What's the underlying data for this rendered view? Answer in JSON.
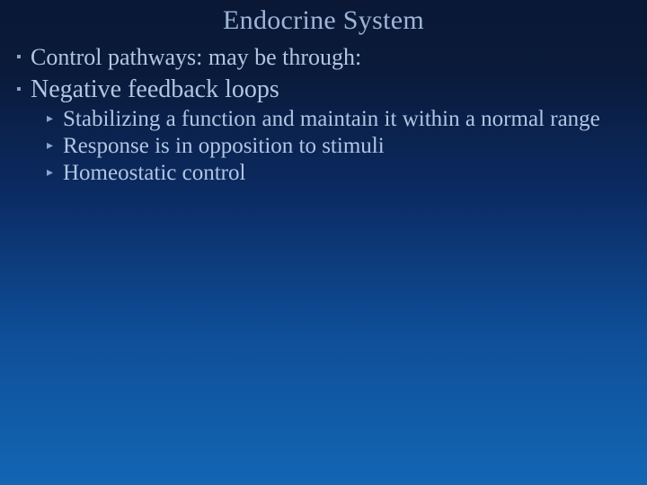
{
  "colors": {
    "title_color": "#9db6d8",
    "body_color": "#b1c6e2",
    "bullet_color": "#8aa6cc"
  },
  "typography": {
    "title_fontsize": 30,
    "l1_fontsize": 26,
    "l1_bold_fontsize": 28,
    "l2_fontsize": 25,
    "font_family": "Times New Roman"
  },
  "bullets": {
    "square": "▪",
    "triangle": "▸"
  },
  "title": "Endocrine System",
  "items": [
    {
      "level": 1,
      "bold": false,
      "text": "Control pathways: may be through:"
    },
    {
      "level": 1,
      "bold": true,
      "text": "Negative feedback loops",
      "children": [
        {
          "text": "Stabilizing a function and maintain it within a normal range"
        },
        {
          "text": "Response is in opposition to stimuli"
        },
        {
          "text": "Homeostatic control"
        }
      ]
    }
  ]
}
